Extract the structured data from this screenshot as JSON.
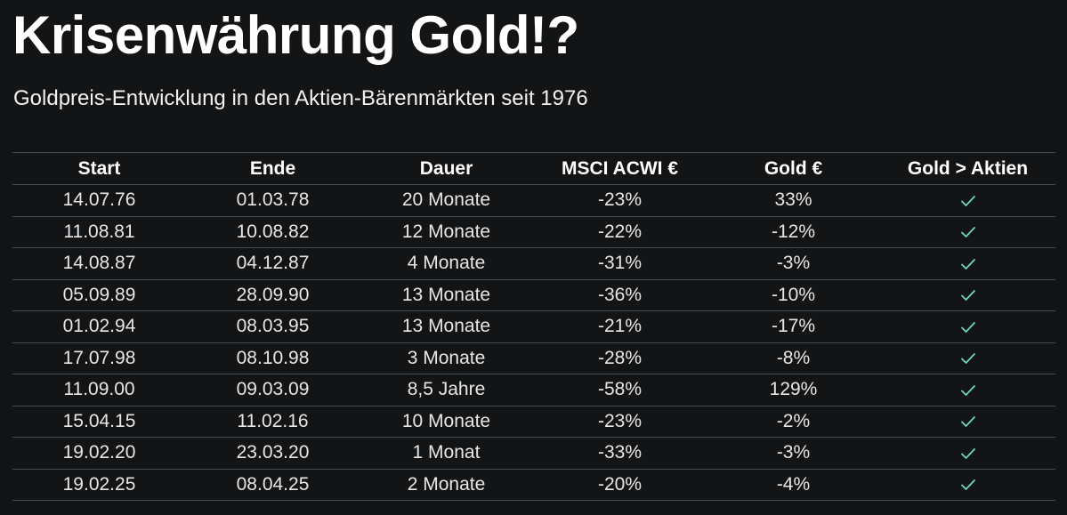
{
  "title": "Krisenwährung Gold!?",
  "subtitle": "Goldpreis-Entwicklung in den Aktien-Bärenmärkten seit 1976",
  "colors": {
    "background": "#121416",
    "negative": "#f08a6c",
    "positive": "#6fd6bf",
    "check": "#6fd6bf"
  },
  "table": {
    "headers": [
      "Start",
      "Ende",
      "Dauer",
      "MSCI ACWI €",
      "Gold €",
      "Gold > Aktien"
    ],
    "rows": [
      {
        "start": "14.07.76",
        "end": "01.03.78",
        "duration": "20 Monate",
        "msci": "-23%",
        "gold": "33%",
        "gold_sign": "pos",
        "check_icon": "check-icon"
      },
      {
        "start": "11.08.81",
        "end": "10.08.82",
        "duration": "12 Monate",
        "msci": "-22%",
        "gold": "-12%",
        "gold_sign": "neg",
        "check_icon": "check-icon"
      },
      {
        "start": "14.08.87",
        "end": "04.12.87",
        "duration": "4 Monate",
        "msci": "-31%",
        "gold": "-3%",
        "gold_sign": "neg",
        "check_icon": "check-icon"
      },
      {
        "start": "05.09.89",
        "end": "28.09.90",
        "duration": "13 Monate",
        "msci": "-36%",
        "gold": "-10%",
        "gold_sign": "neg",
        "check_icon": "check-icon"
      },
      {
        "start": "01.02.94",
        "end": "08.03.95",
        "duration": "13 Monate",
        "msci": "-21%",
        "gold": "-17%",
        "gold_sign": "neg",
        "check_icon": "check-icon"
      },
      {
        "start": "17.07.98",
        "end": "08.10.98",
        "duration": "3 Monate",
        "msci": "-28%",
        "gold": "-8%",
        "gold_sign": "neg",
        "check_icon": "check-icon"
      },
      {
        "start": "11.09.00",
        "end": "09.03.09",
        "duration": "8,5 Jahre",
        "msci": "-58%",
        "gold": "129%",
        "gold_sign": "pos",
        "check_icon": "check-icon"
      },
      {
        "start": "15.04.15",
        "end": "11.02.16",
        "duration": "10 Monate",
        "msci": "-23%",
        "gold": "-2%",
        "gold_sign": "neg",
        "check_icon": "check-icon"
      },
      {
        "start": "19.02.20",
        "end": "23.03.20",
        "duration": "1 Monat",
        "msci": "-33%",
        "gold": "-3%",
        "gold_sign": "neg",
        "check_icon": "check-icon"
      },
      {
        "start": "19.02.25",
        "end": "08.04.25",
        "duration": "2 Monate",
        "msci": "-20%",
        "gold": "-4%",
        "gold_sign": "neg",
        "check_icon": "check-icon"
      }
    ]
  }
}
